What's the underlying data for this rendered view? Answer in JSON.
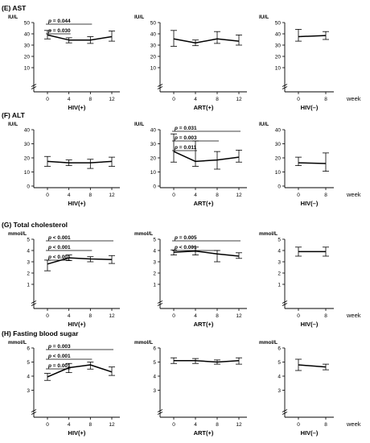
{
  "figure": {
    "week_label": "week"
  },
  "chart_data": [
    {
      "id": "E",
      "title": "(E) AST",
      "unit": "IU/L",
      "y_ticks": [
        10,
        20,
        30,
        40,
        50
      ],
      "ylim": [
        0,
        50
      ],
      "axis_break": true,
      "panels": [
        {
          "type": "line",
          "xlabel": "HIV(+)",
          "x": [
            0,
            4,
            8,
            12
          ],
          "mean": [
            39,
            34.5,
            34.5,
            37.5
          ],
          "lower": [
            35.5,
            32,
            31.5,
            33.5
          ],
          "upper": [
            43,
            36.5,
            37.5,
            42.5
          ],
          "significance": [
            {
              "label": "p = 0.044",
              "from": 0,
              "to": 8
            },
            {
              "label": "p = 0.030",
              "from": 0,
              "to": 4
            }
          ]
        },
        {
          "type": "line",
          "xlabel": "ART(+)",
          "x": [
            0,
            4,
            8,
            12
          ],
          "mean": [
            35.5,
            32,
            35.5,
            33.5
          ],
          "lower": [
            29,
            29.5,
            31.5,
            30
          ],
          "upper": [
            43,
            34.5,
            42,
            39
          ],
          "significance": []
        },
        {
          "type": "line",
          "xlabel": "HIV(–)",
          "x": [
            0,
            8
          ],
          "mean": [
            37.5,
            38.5
          ],
          "lower": [
            33.5,
            35
          ],
          "upper": [
            44,
            42
          ],
          "significance": []
        }
      ]
    },
    {
      "id": "F",
      "title": "(F) ALT",
      "unit": "IU/L",
      "y_ticks": [
        0,
        10,
        20,
        30,
        40
      ],
      "ylim": [
        0,
        40
      ],
      "axis_break": false,
      "panels": [
        {
          "type": "line",
          "xlabel": "HIV(+)",
          "x": [
            0,
            4,
            8,
            12
          ],
          "mean": [
            17.5,
            16.5,
            16.5,
            17.5
          ],
          "lower": [
            14,
            14.5,
            12.5,
            14
          ],
          "upper": [
            21,
            18.5,
            19,
            20.5
          ],
          "significance": []
        },
        {
          "type": "line",
          "xlabel": "ART(+)",
          "x": [
            0,
            4,
            8,
            12
          ],
          "mean": [
            24.5,
            17.5,
            18.5,
            20.5
          ],
          "lower": [
            17,
            14,
            12,
            17
          ],
          "upper": [
            37,
            32,
            24.5,
            25.5
          ],
          "significance": [
            {
              "label": "p = 0.031",
              "from": 0,
              "to": 12
            },
            {
              "label": "p = 0.003",
              "from": 0,
              "to": 8
            },
            {
              "label": "p = 0.011",
              "from": 0,
              "to": 4
            }
          ]
        },
        {
          "type": "line",
          "xlabel": "HIV(–)",
          "x": [
            0,
            8
          ],
          "mean": [
            16.5,
            16
          ],
          "lower": [
            14.5,
            10.5
          ],
          "upper": [
            20.5,
            23.5
          ],
          "significance": []
        }
      ]
    },
    {
      "id": "G",
      "title": "(G) Total cholesterol",
      "unit": "mmol/L",
      "y_ticks": [
        1,
        2,
        3,
        4,
        5
      ],
      "ylim": [
        0,
        5
      ],
      "axis_break": true,
      "panels": [
        {
          "type": "line",
          "xlabel": "HIV(+)",
          "x": [
            0,
            4,
            8,
            12
          ],
          "mean": [
            2.8,
            3.35,
            3.25,
            3.2
          ],
          "lower": [
            2.2,
            3.1,
            3.0,
            2.85
          ],
          "upper": [
            3.15,
            3.6,
            3.45,
            3.55
          ],
          "significance": [
            {
              "label": "p < 0.001",
              "from": 0,
              "to": 12
            },
            {
              "label": "p < 0.001",
              "from": 0,
              "to": 8
            },
            {
              "label": "p < 0.001",
              "from": 0,
              "to": 4
            }
          ]
        },
        {
          "type": "line",
          "xlabel": "ART(+)",
          "x": [
            0,
            4,
            8,
            12
          ],
          "mean": [
            3.85,
            3.95,
            3.7,
            3.5
          ],
          "lower": [
            3.6,
            3.6,
            3.0,
            3.3
          ],
          "upper": [
            4.05,
            4.3,
            4.0,
            3.8
          ],
          "significance": [
            {
              "label": "p = 0.005",
              "from": 0,
              "to": 12
            },
            {
              "label": "p < 0.001",
              "from": 0,
              "to": 8
            }
          ]
        },
        {
          "type": "line",
          "xlabel": "HIV(–)",
          "x": [
            0,
            8
          ],
          "mean": [
            3.9,
            3.9
          ],
          "lower": [
            3.5,
            3.5
          ],
          "upper": [
            4.3,
            4.3
          ],
          "significance": []
        }
      ]
    },
    {
      "id": "H",
      "title": "(H) Fasting blood sugar",
      "unit": "mmol/L",
      "y_ticks": [
        3,
        4,
        5,
        6
      ],
      "ylim": [
        2,
        6
      ],
      "axis_break": true,
      "panels": [
        {
          "type": "line",
          "xlabel": "HIV(+)",
          "x": [
            0,
            4,
            8,
            12
          ],
          "mean": [
            3.95,
            4.6,
            4.8,
            4.3
          ],
          "lower": [
            3.7,
            4.25,
            4.5,
            4.05
          ],
          "upper": [
            4.2,
            4.9,
            5.0,
            4.65
          ],
          "significance": [
            {
              "label": "p = 0.003",
              "from": 0,
              "to": 12
            },
            {
              "label": "p < 0.001",
              "from": 0,
              "to": 8
            },
            {
              "label": "p = 0.001",
              "from": 0,
              "to": 4
            }
          ]
        },
        {
          "type": "line",
          "xlabel": "ART(+)",
          "x": [
            0,
            4,
            8,
            12
          ],
          "mean": [
            5.1,
            5.1,
            5.0,
            5.1
          ],
          "lower": [
            4.9,
            4.9,
            4.85,
            4.85
          ],
          "upper": [
            5.3,
            5.25,
            5.15,
            5.3
          ],
          "significance": []
        },
        {
          "type": "line",
          "xlabel": "HIV(–)",
          "x": [
            0,
            8
          ],
          "mean": [
            4.8,
            4.65
          ],
          "lower": [
            4.4,
            4.45
          ],
          "upper": [
            5.2,
            4.85
          ],
          "significance": []
        }
      ]
    }
  ]
}
